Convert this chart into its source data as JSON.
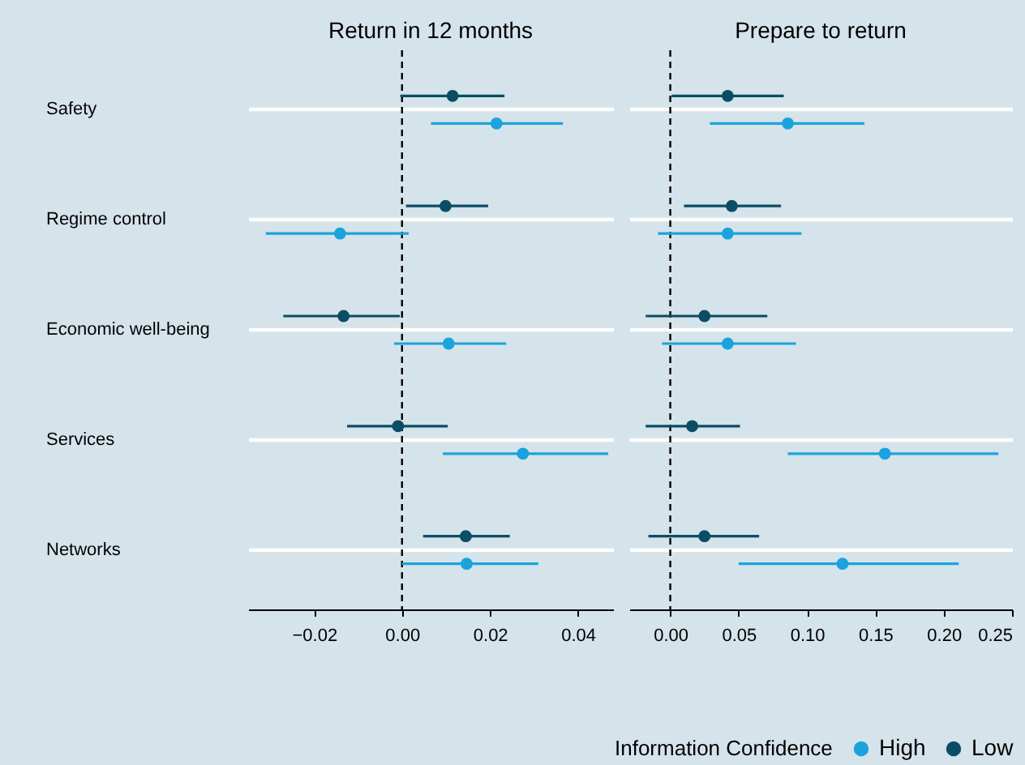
{
  "chart_data": [
    {
      "type": "scatter",
      "orientation": "horizontal",
      "title": "Return in 12 months",
      "legend_title": "Information Confidence",
      "legend": "bottom",
      "grid": "y",
      "marker": "circle",
      "categories": [
        "Safety",
        "Regime control",
        "Economic well-being",
        "Services",
        "Networks"
      ],
      "xlim": [
        -0.035,
        0.048
      ],
      "xticks": [
        {
          "value": -0.02,
          "label": "−0.02"
        },
        {
          "value": 0,
          "label": "0.00"
        },
        {
          "value": 0.02,
          "label": "0.02"
        },
        {
          "value": 0.04,
          "label": "0.04"
        }
      ],
      "ref_lines": [
        {
          "axis": "x",
          "value": 0,
          "line_style": "dashed",
          "color": "#000000"
        }
      ],
      "series": [
        {
          "name": "High",
          "color": "#1aa3dc",
          "values": [
            0.0215,
            -0.0141,
            0.0106,
            0.0275,
            0.0147
          ],
          "errors": [
            [
              0.0066,
              0.0366
            ],
            [
              -0.031,
              0.0015
            ],
            [
              -0.0018,
              0.0237
            ],
            [
              0.0093,
              0.0469
            ],
            [
              0.0,
              0.031
            ]
          ]
        },
        {
          "name": "Low",
          "color": "#0b4d64",
          "values": [
            0.0115,
            0.0099,
            -0.0133,
            -0.0009,
            0.0145
          ],
          "errors": [
            [
              -0.0004,
              0.0233
            ],
            [
              0.0009,
              0.0196
            ],
            [
              -0.027,
              -0.0005
            ],
            [
              -0.0125,
              0.0104
            ],
            [
              0.0048,
              0.0245
            ]
          ]
        }
      ]
    },
    {
      "type": "scatter",
      "orientation": "horizontal",
      "title": "Prepare to return",
      "grid": "y",
      "marker": "circle",
      "tick_labels": "x",
      "categories": [
        "Safety",
        "Regime control",
        "Economic well-being",
        "Services",
        "Networks"
      ],
      "xlim": [
        -0.03,
        0.25
      ],
      "xticks": [
        {
          "value": 0,
          "label": "0.00"
        },
        {
          "value": 0.05,
          "label": "0.05"
        },
        {
          "value": 0.1,
          "label": "0.10"
        },
        {
          "value": 0.15,
          "label": "0.15"
        },
        {
          "value": 0.2,
          "label": "0.20"
        },
        {
          "value": 0.25,
          "label": "0.25"
        }
      ],
      "ref_lines": [
        {
          "axis": "x",
          "value": 0,
          "line_style": "dashed",
          "color": "#000000"
        }
      ],
      "series": [
        {
          "color": "#1aa3dc",
          "values": [
            0.086,
            0.042,
            0.042,
            0.157,
            0.126
          ],
          "errors": [
            [
              0.029,
              0.142
            ],
            [
              -0.009,
              0.096
            ],
            [
              -0.006,
              0.092
            ],
            [
              0.086,
              0.24
            ],
            [
              0.05,
              0.211
            ]
          ]
        },
        {
          "color": "#0b4d64",
          "values": [
            0.042,
            0.045,
            0.025,
            0.016,
            0.025
          ],
          "errors": [
            [
              0.001,
              0.083
            ],
            [
              0.01,
              0.081
            ],
            [
              -0.018,
              0.071
            ],
            [
              -0.018,
              0.051
            ],
            [
              -0.016,
              0.065
            ]
          ]
        }
      ]
    }
  ]
}
